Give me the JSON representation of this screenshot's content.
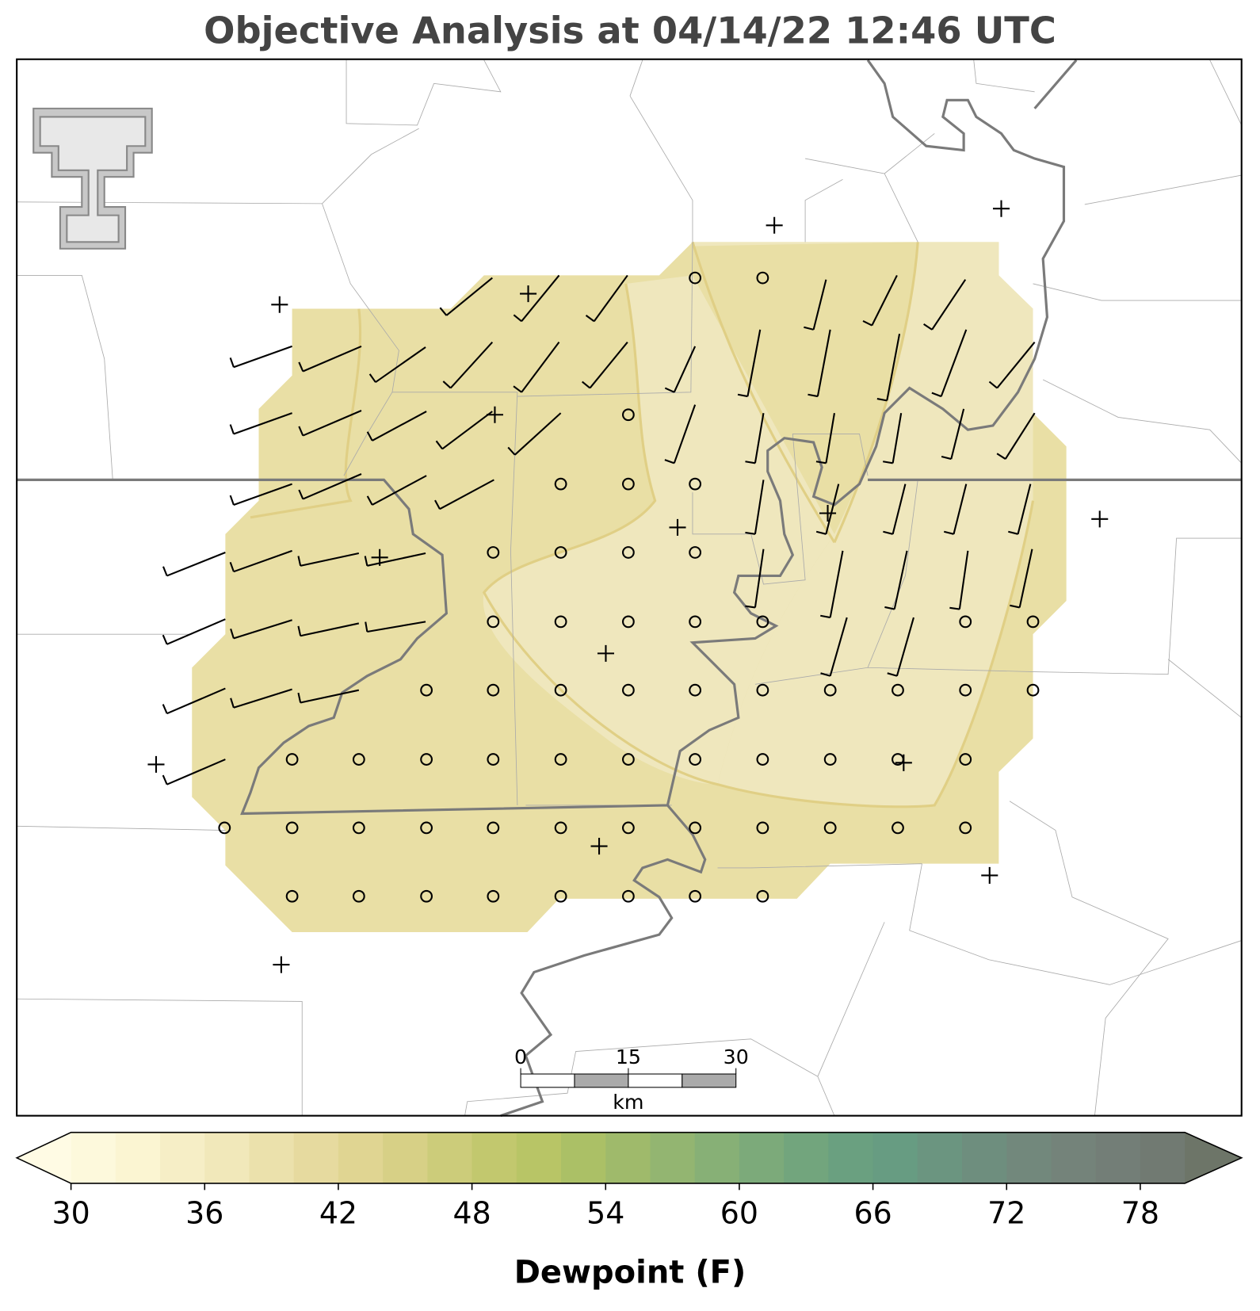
{
  "title": "Objective Analysis at 04/14/22 12:46 UTC",
  "colorbar": {
    "label": "Dewpoint (F)",
    "levels": [
      30,
      32,
      34,
      36,
      38,
      40,
      42,
      44,
      46,
      48,
      50,
      52,
      54,
      56,
      58,
      60,
      62,
      64,
      66,
      68,
      70,
      72,
      74,
      76,
      78,
      80
    ],
    "colors": [
      "#fdf9dc",
      "#fbf5d2",
      "#f6eec6",
      "#f1e8ba",
      "#ebe1ac",
      "#e6da9f",
      "#e0d592",
      "#d7d086",
      "#cccc7a",
      "#c2c86e",
      "#b8c566",
      "#abc066",
      "#9fba6b",
      "#93b571",
      "#87b076",
      "#7caa7a",
      "#72a57d",
      "#6aa080",
      "#679c82",
      "#6b9580",
      "#6e8e7e",
      "#72887c",
      "#74837a",
      "#737e77",
      "#717a72"
    ],
    "extend_colors": [
      "#fffbe4",
      "#6d7568"
    ],
    "ticks": [
      30,
      36,
      42,
      48,
      54,
      60,
      66,
      72,
      78
    ]
  },
  "scale_bar": {
    "ticks": [
      0,
      15,
      30
    ],
    "unit": "km"
  }
}
